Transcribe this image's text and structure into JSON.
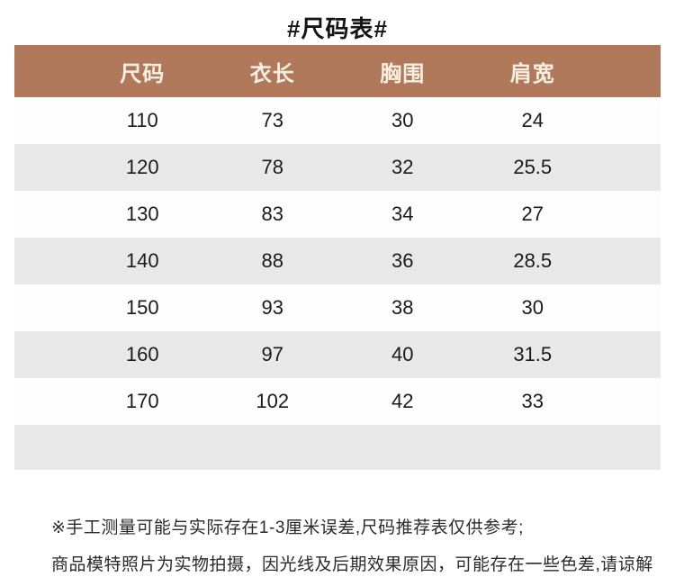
{
  "title": "#尺码表#",
  "table": {
    "headers": [
      "尺码",
      "衣长",
      "胸围",
      "肩宽"
    ],
    "rows": [
      [
        "110",
        "73",
        "30",
        "24"
      ],
      [
        "120",
        "78",
        "32",
        "25.5"
      ],
      [
        "130",
        "83",
        "34",
        "27"
      ],
      [
        "140",
        "88",
        "36",
        "28.5"
      ],
      [
        "150",
        "93",
        "38",
        "30"
      ],
      [
        "160",
        "97",
        "40",
        "31.5"
      ],
      [
        "170",
        "102",
        "42",
        "33"
      ]
    ]
  },
  "notes": [
    "※手工测量可能与实际存在1-3厘米误差,尺码推荐表仅供参考;",
    "商品模特照片为实物拍摄，因光线及后期效果原因，可能存在一些色差,请谅解"
  ],
  "colors": {
    "header_bg": "#b1795b",
    "header_text": "#f8efe0",
    "row_bg": "#fdfdfd",
    "row_alt_bg": "#e8e8e8",
    "body_text": "#1b1b1b",
    "note_text": "#2a2a2a"
  },
  "chart_data": {
    "type": "table",
    "title": "#尺码表#",
    "columns": [
      "尺码",
      "衣长",
      "胸围",
      "肩宽"
    ],
    "rows": [
      [
        110,
        73,
        30,
        24
      ],
      [
        120,
        78,
        32,
        25.5
      ],
      [
        130,
        83,
        34,
        27
      ],
      [
        140,
        88,
        36,
        28.5
      ],
      [
        150,
        93,
        38,
        30
      ],
      [
        160,
        97,
        40,
        31.5
      ],
      [
        170,
        102,
        42,
        33
      ]
    ],
    "notes": [
      "※手工测量可能与实际存在1-3厘米误差,尺码推荐表仅供参考;",
      "商品模特照片为实物拍摄，因光线及后期效果原因，可能存在一些色差,请谅解"
    ],
    "layout": "alternating row shading, terracotta header band"
  }
}
